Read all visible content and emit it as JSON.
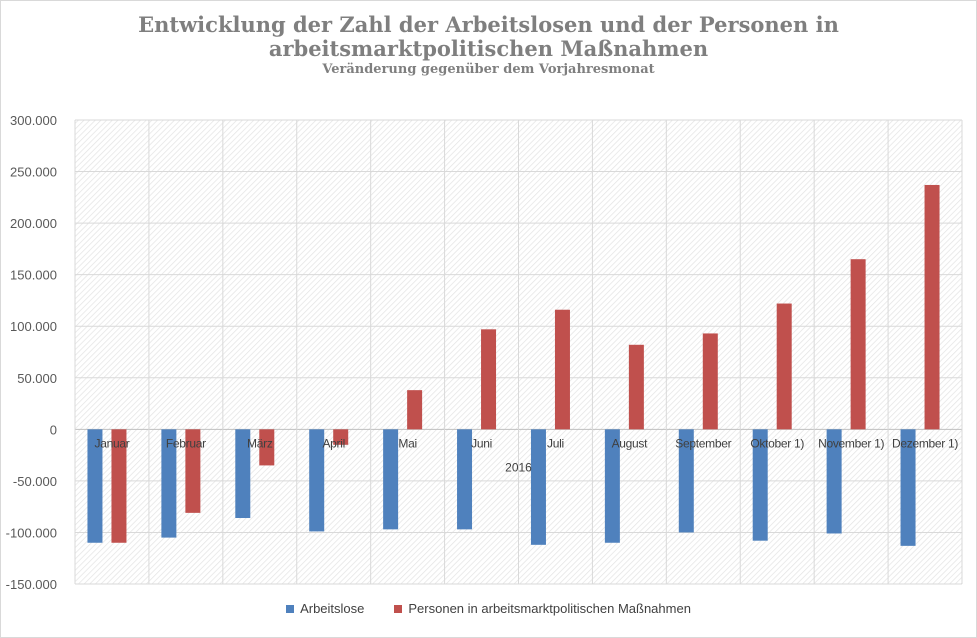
{
  "chart_data": {
    "type": "bar",
    "title_line1": "Entwicklung der Zahl der Arbeitslosen und der Personen in",
    "title_line2": "arbeitsmarktpolitischen Maßnahmen",
    "subtitle": "Veränderung gegenüber dem Vorjahresmonat",
    "xlabel": "2016",
    "ylabel": "",
    "categories": [
      "Januar",
      "Februar",
      "März",
      "April",
      "Mai",
      "Juni",
      "Juli",
      "August",
      "September",
      "Oktober 1)",
      "November 1)",
      "Dezember 1)"
    ],
    "series": [
      {
        "name": "Arbeitslose",
        "color": "#4f81bd",
        "values": [
          -110000,
          -105000,
          -86000,
          -99000,
          -97000,
          -97000,
          -112000,
          -110000,
          -100000,
          -108000,
          -101000,
          -113000
        ]
      },
      {
        "name": "Personen in arbeitsmarktpolitischen Maßnahmen",
        "color": "#c0504d",
        "values": [
          -110000,
          -81000,
          -35000,
          -15000,
          38000,
          97000,
          116000,
          82000,
          93000,
          122000,
          165000,
          237000
        ]
      }
    ],
    "ylim": [
      -150000,
      300000
    ],
    "yticks": [
      300000,
      250000,
      200000,
      150000,
      100000,
      50000,
      0,
      -50000,
      -100000,
      -150000
    ],
    "ytick_labels": [
      "300.000",
      "250.000",
      "200.000",
      "150.000",
      "100.000",
      "50.000",
      "0",
      "-50.000",
      "-100.000",
      "-150.000"
    ],
    "grid": true,
    "legend_position": "bottom"
  }
}
